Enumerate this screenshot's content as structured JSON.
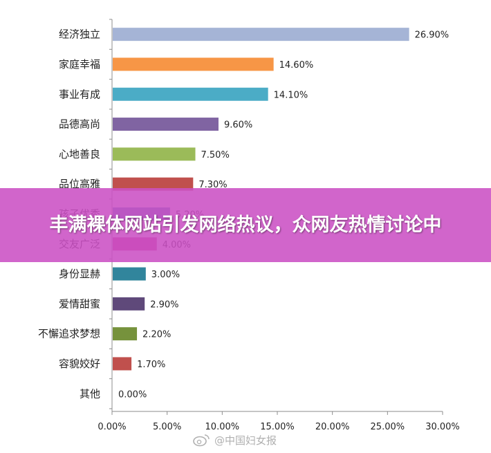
{
  "chart_data": {
    "type": "bar",
    "orientation": "horizontal",
    "title": "",
    "xlabel": "",
    "ylabel": "",
    "xlim": [
      0,
      30
    ],
    "ticks": [
      "0.00%",
      "5.00%",
      "10.00%",
      "15.00%",
      "20.00%",
      "25.00%",
      "30.00%"
    ],
    "grid": false,
    "legend": "none",
    "categories": [
      "经济独立",
      "家庭幸福",
      "事业有成",
      "品德高尚",
      "心地善良",
      "品位高雅",
      "孩子优秀",
      "交友广泛",
      "身份显赫",
      "爱情甜蜜",
      "不懈追求梦想",
      "容貌姣好",
      "其他"
    ],
    "values": [
      26.9,
      14.6,
      14.1,
      9.6,
      7.5,
      7.3,
      5.2,
      4.0,
      3.0,
      2.9,
      2.2,
      1.7,
      0.0
    ],
    "value_labels": [
      "26.90%",
      "14.60%",
      "14.10%",
      "9.60%",
      "7.50%",
      "7.30%",
      "5.20%",
      "4.00%",
      "3.00%",
      "2.90%",
      "2.20%",
      "1.70%",
      "0.00%"
    ],
    "colors": [
      "#a5b4d6",
      "#f79646",
      "#4bacc6",
      "#8064a2",
      "#9bbb59",
      "#c0504d",
      "#4f81bd",
      "#c83a8a",
      "#31859c",
      "#5f497a",
      "#76923c",
      "#c0504d",
      "#999999"
    ]
  },
  "banner": {
    "text": "丰满裸体网站引发网络热议，众网友热情讨论中"
  },
  "watermark": {
    "text": "@中国妇女报",
    "icon": "weibo-icon"
  }
}
